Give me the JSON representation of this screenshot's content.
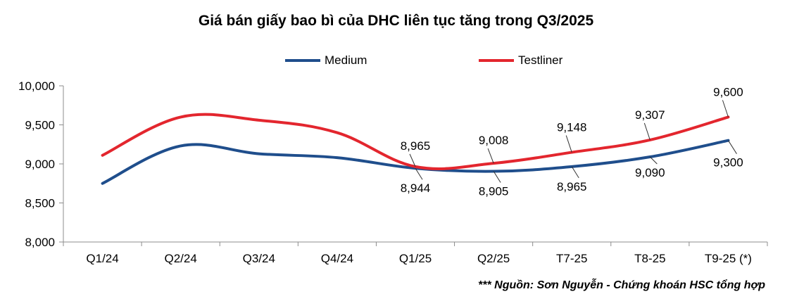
{
  "chart_data": {
    "type": "line",
    "title": "Giá bán giấy bao bì của DHC liên tục tăng trong Q3/2025",
    "categories": [
      "Q1/24",
      "Q2/24",
      "Q3/24",
      "Q4/24",
      "Q1/25",
      "Q2/25",
      "T7-25",
      "T8-25",
      "T9-25 (*)"
    ],
    "ylim": [
      8000,
      10000
    ],
    "yticks": [
      "10,000",
      "9,500",
      "9,000",
      "8,500",
      "8,000"
    ],
    "grid": false,
    "legend_position": "top",
    "series": [
      {
        "name": "Medium",
        "color": "#1f4e8c",
        "values": [
          8750,
          9230,
          9130,
          9080,
          8944,
          8905,
          8965,
          9090,
          9300
        ],
        "data_labels": [
          null,
          null,
          null,
          null,
          "8,944",
          "8,905",
          "8,965",
          "9,090",
          "9,300"
        ]
      },
      {
        "name": "Testliner",
        "color": "#e3262e",
        "values": [
          9110,
          9600,
          9560,
          9400,
          8965,
          9008,
          9148,
          9307,
          9600
        ],
        "data_labels": [
          null,
          null,
          null,
          null,
          "8,965",
          "9,008",
          "9,148",
          "9,307",
          "9,600"
        ]
      }
    ],
    "source_note": "*** Nguồn: Sơn Nguyễn - Chứng khoán HSC tổng hợp"
  }
}
